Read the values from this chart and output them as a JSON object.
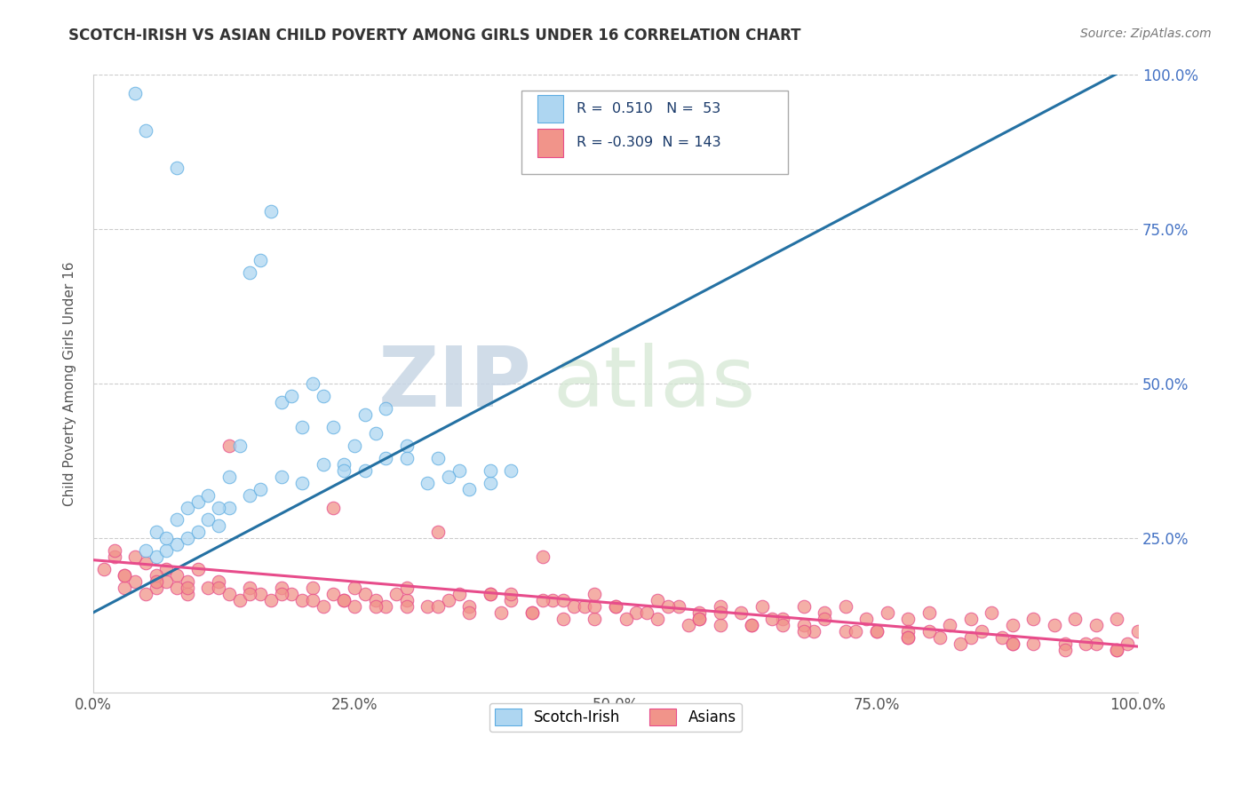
{
  "title": "SCOTCH-IRISH VS ASIAN CHILD POVERTY AMONG GIRLS UNDER 16 CORRELATION CHART",
  "source": "Source: ZipAtlas.com",
  "ylabel": "Child Poverty Among Girls Under 16",
  "xlim": [
    0.0,
    1.0
  ],
  "ylim": [
    0.0,
    1.0
  ],
  "xtick_vals": [
    0.0,
    0.25,
    0.5,
    0.75,
    1.0
  ],
  "xtick_labels": [
    "0.0%",
    "25.0%",
    "50.0%",
    "75.0%",
    "100.0%"
  ],
  "ytick_vals": [
    0.25,
    0.5,
    0.75,
    1.0
  ],
  "ytick_labels": [
    "25.0%",
    "50.0%",
    "75.0%",
    "100.0%"
  ],
  "scotch_irish_R": "0.510",
  "scotch_irish_N": "53",
  "asian_R": "-0.309",
  "asian_N": "143",
  "scotch_irish_fill": "#AED6F1",
  "scotch_irish_edge": "#5DADE2",
  "asian_fill": "#F1948A",
  "asian_edge": "#E74C8B",
  "si_line_color": "#2471A3",
  "asian_line_color": "#E74C8B",
  "watermark_zip": "ZIP",
  "watermark_atlas": "atlas",
  "legend_label_si": "Scotch-Irish",
  "legend_label_asian": "Asians",
  "si_line_x0": 0.0,
  "si_line_y0": 0.13,
  "si_line_x1": 1.0,
  "si_line_y1": 1.02,
  "asian_line_x0": 0.0,
  "asian_line_y0": 0.215,
  "asian_line_x1": 1.0,
  "asian_line_y1": 0.075,
  "scotch_irish_x": [
    0.04,
    0.05,
    0.08,
    0.06,
    0.07,
    0.08,
    0.09,
    0.1,
    0.11,
    0.12,
    0.13,
    0.14,
    0.15,
    0.16,
    0.17,
    0.18,
    0.19,
    0.2,
    0.21,
    0.22,
    0.23,
    0.24,
    0.25,
    0.26,
    0.27,
    0.28,
    0.3,
    0.33,
    0.35,
    0.38,
    0.4,
    0.05,
    0.06,
    0.07,
    0.08,
    0.09,
    0.1,
    0.11,
    0.12,
    0.13,
    0.15,
    0.16,
    0.18,
    0.2,
    0.22,
    0.24,
    0.26,
    0.28,
    0.3,
    0.32,
    0.34,
    0.36,
    0.38
  ],
  "scotch_irish_y": [
    0.97,
    0.91,
    0.85,
    0.22,
    0.23,
    0.24,
    0.25,
    0.26,
    0.28,
    0.27,
    0.3,
    0.4,
    0.68,
    0.7,
    0.78,
    0.47,
    0.48,
    0.43,
    0.5,
    0.48,
    0.43,
    0.37,
    0.4,
    0.45,
    0.42,
    0.46,
    0.4,
    0.38,
    0.36,
    0.34,
    0.36,
    0.23,
    0.26,
    0.25,
    0.28,
    0.3,
    0.31,
    0.32,
    0.3,
    0.35,
    0.32,
    0.33,
    0.35,
    0.34,
    0.37,
    0.36,
    0.36,
    0.38,
    0.38,
    0.34,
    0.35,
    0.33,
    0.36
  ],
  "asian_x": [
    0.01,
    0.02,
    0.03,
    0.04,
    0.05,
    0.06,
    0.07,
    0.08,
    0.09,
    0.1,
    0.02,
    0.03,
    0.04,
    0.05,
    0.06,
    0.07,
    0.08,
    0.09,
    0.11,
    0.12,
    0.13,
    0.14,
    0.15,
    0.16,
    0.17,
    0.18,
    0.19,
    0.2,
    0.21,
    0.22,
    0.23,
    0.24,
    0.25,
    0.26,
    0.27,
    0.28,
    0.29,
    0.3,
    0.32,
    0.34,
    0.36,
    0.38,
    0.4,
    0.42,
    0.44,
    0.46,
    0.48,
    0.5,
    0.52,
    0.54,
    0.56,
    0.58,
    0.6,
    0.62,
    0.64,
    0.66,
    0.68,
    0.7,
    0.72,
    0.74,
    0.76,
    0.78,
    0.8,
    0.82,
    0.84,
    0.86,
    0.88,
    0.9,
    0.92,
    0.94,
    0.96,
    0.98,
    1.0,
    0.03,
    0.06,
    0.09,
    0.12,
    0.15,
    0.18,
    0.21,
    0.24,
    0.27,
    0.3,
    0.33,
    0.36,
    0.39,
    0.42,
    0.45,
    0.48,
    0.51,
    0.54,
    0.57,
    0.6,
    0.63,
    0.66,
    0.69,
    0.72,
    0.75,
    0.78,
    0.81,
    0.84,
    0.87,
    0.9,
    0.93,
    0.96,
    0.99,
    0.4,
    0.55,
    0.7,
    0.85,
    0.25,
    0.45,
    0.6,
    0.75,
    0.35,
    0.5,
    0.65,
    0.8,
    0.95,
    0.3,
    0.47,
    0.58,
    0.68,
    0.78,
    0.88,
    0.98,
    0.43,
    0.53,
    0.63,
    0.73,
    0.83,
    0.93,
    0.38,
    0.48,
    0.58,
    0.68,
    0.78,
    0.88,
    0.98,
    0.13,
    0.23,
    0.33,
    0.43
  ],
  "asian_y": [
    0.2,
    0.22,
    0.19,
    0.18,
    0.21,
    0.17,
    0.2,
    0.19,
    0.18,
    0.2,
    0.23,
    0.17,
    0.22,
    0.16,
    0.19,
    0.18,
    0.17,
    0.16,
    0.17,
    0.18,
    0.16,
    0.15,
    0.17,
    0.16,
    0.15,
    0.17,
    0.16,
    0.15,
    0.17,
    0.14,
    0.16,
    0.15,
    0.14,
    0.16,
    0.15,
    0.14,
    0.16,
    0.15,
    0.14,
    0.15,
    0.14,
    0.16,
    0.15,
    0.13,
    0.15,
    0.14,
    0.16,
    0.14,
    0.13,
    0.15,
    0.14,
    0.13,
    0.14,
    0.13,
    0.14,
    0.12,
    0.14,
    0.13,
    0.14,
    0.12,
    0.13,
    0.12,
    0.13,
    0.11,
    0.12,
    0.13,
    0.11,
    0.12,
    0.11,
    0.12,
    0.11,
    0.12,
    0.1,
    0.19,
    0.18,
    0.17,
    0.17,
    0.16,
    0.16,
    0.15,
    0.15,
    0.14,
    0.14,
    0.14,
    0.13,
    0.13,
    0.13,
    0.12,
    0.12,
    0.12,
    0.12,
    0.11,
    0.11,
    0.11,
    0.11,
    0.1,
    0.1,
    0.1,
    0.1,
    0.09,
    0.09,
    0.09,
    0.08,
    0.08,
    0.08,
    0.08,
    0.16,
    0.14,
    0.12,
    0.1,
    0.17,
    0.15,
    0.13,
    0.1,
    0.16,
    0.14,
    0.12,
    0.1,
    0.08,
    0.17,
    0.14,
    0.12,
    0.11,
    0.09,
    0.08,
    0.07,
    0.15,
    0.13,
    0.11,
    0.1,
    0.08,
    0.07,
    0.16,
    0.14,
    0.12,
    0.1,
    0.09,
    0.08,
    0.07,
    0.4,
    0.3,
    0.26,
    0.22
  ]
}
